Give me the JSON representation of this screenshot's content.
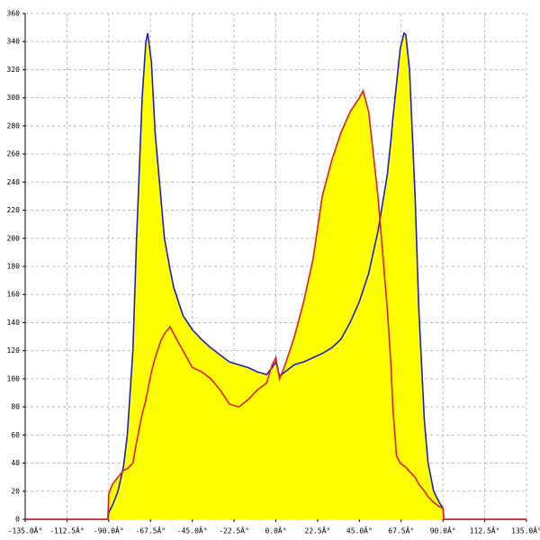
{
  "chart_data": {
    "type": "area",
    "x": [
      -135,
      -90.5,
      -90,
      -88,
      -85,
      -82,
      -80,
      -77,
      -75,
      -72,
      -70,
      -69,
      -67,
      -65,
      -62,
      -60,
      -57,
      -55,
      -50,
      -45,
      -40,
      -35,
      -30,
      -25,
      -20,
      -15,
      -10,
      -5,
      -2,
      0,
      2,
      5,
      10,
      15,
      20,
      25,
      30,
      35,
      40,
      45,
      47,
      50,
      55,
      60,
      62,
      63,
      65,
      67,
      69,
      70,
      72,
      75,
      77,
      80,
      82,
      85,
      88,
      90,
      90.5,
      135
    ],
    "series": [
      {
        "color": "#1f1fbf",
        "fill": "#ffff00",
        "values": [
          0,
          0,
          5,
          10,
          20,
          38,
          60,
          120,
          200,
          300,
          340,
          346,
          325,
          275,
          230,
          200,
          178,
          165,
          145,
          135,
          128,
          122,
          117,
          112,
          110,
          108,
          105,
          103,
          108,
          112,
          102,
          105,
          110,
          112,
          115,
          118,
          122,
          128,
          140,
          155,
          163,
          175,
          205,
          245,
          270,
          285,
          310,
          335,
          346,
          345,
          320,
          230,
          150,
          70,
          40,
          20,
          12,
          8,
          0,
          0
        ]
      },
      {
        "color": "#e0201f",
        "fill": "#ffff00",
        "values": [
          0,
          0,
          18,
          25,
          30,
          35,
          36,
          40,
          55,
          75,
          85,
          92,
          105,
          115,
          127,
          132,
          137,
          132,
          120,
          108,
          105,
          100,
          92,
          82,
          80,
          85,
          92,
          97,
          110,
          115,
          100,
          110,
          130,
          155,
          185,
          230,
          255,
          275,
          290,
          300,
          305,
          290,
          230,
          150,
          110,
          80,
          45,
          40,
          38,
          37,
          34,
          30,
          25,
          20,
          16,
          12,
          9,
          8,
          0,
          0
        ]
      }
    ],
    "xlim": [
      -135,
      135
    ],
    "ylim": [
      0,
      360
    ],
    "xticks": [
      {
        "value": -135,
        "label": "-135.0Â°"
      },
      {
        "value": -112.5,
        "label": "-112.5Â°"
      },
      {
        "value": -90,
        "label": "-90.0Â°"
      },
      {
        "value": -67.5,
        "label": "-67.5Â°"
      },
      {
        "value": -45,
        "label": "-45.0Â°"
      },
      {
        "value": -22.5,
        "label": "-22.5Â°"
      },
      {
        "value": 0,
        "label": "0.0Â°"
      },
      {
        "value": 22.5,
        "label": "22.5Â°"
      },
      {
        "value": 45,
        "label": "45.0Â°"
      },
      {
        "value": 67.5,
        "label": "67.5Â°"
      },
      {
        "value": 90,
        "label": "90.0Â°"
      },
      {
        "value": 112.5,
        "label": "112.5Â°"
      },
      {
        "value": 135,
        "label": "135.0Â°"
      }
    ],
    "yticks": [
      0,
      20,
      40,
      60,
      80,
      100,
      120,
      140,
      160,
      180,
      200,
      220,
      240,
      260,
      280,
      300,
      320,
      340,
      360
    ],
    "grid": true
  }
}
